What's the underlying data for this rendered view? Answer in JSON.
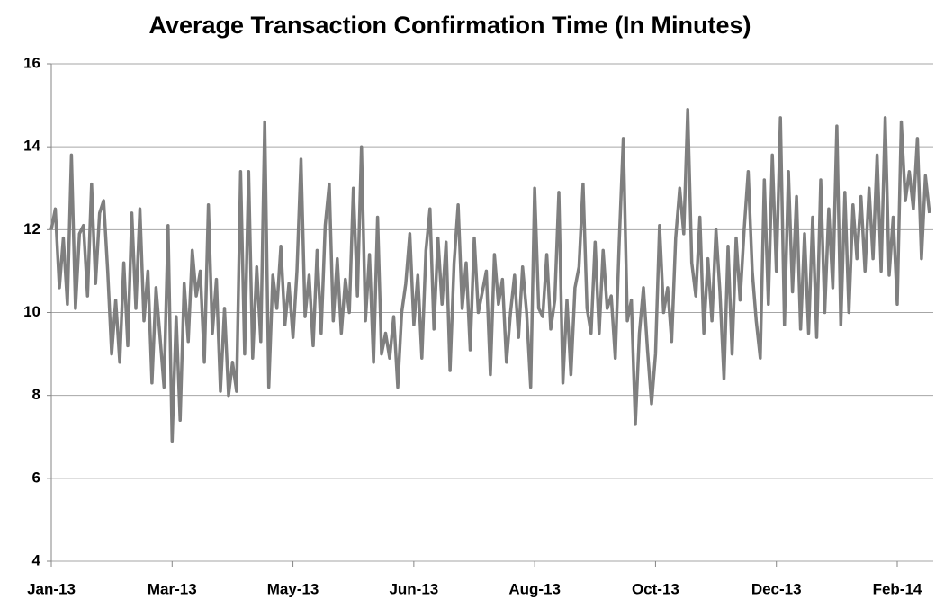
{
  "chart_data": {
    "type": "line",
    "title": "Average Transaction Confirmation Time (In Minutes)",
    "color": "#7f7f7f",
    "ylim": [
      4,
      16
    ],
    "yticks": [
      4,
      6,
      8,
      10,
      12,
      14,
      16
    ],
    "grid": true,
    "categories": [
      "Jan-13",
      null,
      null,
      null,
      null,
      null,
      null,
      null,
      null,
      null,
      null,
      null,
      null,
      null,
      null,
      null,
      null,
      null,
      null,
      null,
      null,
      null,
      null,
      null,
      null,
      null,
      null,
      null,
      null,
      null,
      "Mar-13",
      null,
      null,
      null,
      null,
      null,
      null,
      null,
      null,
      null,
      null,
      null,
      null,
      null,
      null,
      null,
      null,
      null,
      null,
      null,
      null,
      null,
      null,
      null,
      null,
      null,
      null,
      null,
      null,
      null,
      "May-13",
      null,
      null,
      null,
      null,
      null,
      null,
      null,
      null,
      null,
      null,
      null,
      null,
      null,
      null,
      null,
      null,
      null,
      null,
      null,
      null,
      null,
      null,
      null,
      null,
      null,
      null,
      null,
      null,
      null,
      "Jun-13",
      null,
      null,
      null,
      null,
      null,
      null,
      null,
      null,
      null,
      null,
      null,
      null,
      null,
      null,
      null,
      null,
      null,
      null,
      null,
      null,
      null,
      null,
      null,
      null,
      null,
      null,
      null,
      null,
      null,
      "Aug-13",
      null,
      null,
      null,
      null,
      null,
      null,
      null,
      null,
      null,
      null,
      null,
      null,
      null,
      null,
      null,
      null,
      null,
      null,
      null,
      null,
      null,
      null,
      null,
      null,
      null,
      null,
      null,
      null,
      null,
      "Oct-13",
      null,
      null,
      null,
      null,
      null,
      null,
      null,
      null,
      null,
      null,
      null,
      null,
      null,
      null,
      null,
      null,
      null,
      null,
      null,
      null,
      null,
      null,
      null,
      null,
      null,
      null,
      null,
      null,
      null,
      "Dec-13",
      null,
      null,
      null,
      null,
      null,
      null,
      null,
      null,
      null,
      null,
      null,
      null,
      null,
      null,
      null,
      null,
      null,
      null,
      null,
      null,
      null,
      null,
      null,
      null,
      null,
      null,
      null,
      null,
      null,
      "Feb-14",
      null,
      null,
      null,
      null,
      null,
      null,
      null,
      null
    ],
    "values": [
      12.0,
      12.5,
      10.6,
      11.8,
      10.2,
      13.8,
      10.1,
      11.9,
      12.1,
      10.4,
      13.1,
      10.7,
      12.4,
      12.7,
      11.0,
      9.0,
      10.3,
      8.8,
      11.2,
      9.2,
      12.4,
      10.1,
      12.5,
      9.8,
      11.0,
      8.3,
      10.6,
      9.4,
      8.2,
      12.1,
      6.9,
      9.9,
      7.4,
      10.7,
      9.3,
      11.5,
      10.4,
      11.0,
      8.8,
      12.6,
      9.5,
      10.8,
      8.1,
      10.1,
      8.0,
      8.8,
      8.1,
      13.4,
      9.0,
      13.4,
      8.9,
      11.1,
      9.3,
      14.6,
      8.2,
      10.9,
      10.1,
      11.6,
      9.7,
      10.7,
      9.4,
      11.0,
      13.7,
      9.9,
      10.9,
      9.2,
      11.5,
      9.5,
      12.1,
      13.1,
      9.8,
      11.3,
      9.5,
      10.8,
      10.0,
      13.0,
      10.4,
      14.0,
      9.8,
      11.4,
      8.8,
      12.3,
      9.0,
      9.5,
      8.9,
      9.9,
      8.2,
      10.0,
      10.7,
      11.9,
      9.7,
      10.9,
      8.9,
      11.5,
      12.5,
      9.6,
      11.8,
      10.2,
      11.7,
      8.6,
      11.2,
      12.6,
      10.1,
      11.2,
      9.1,
      11.8,
      10.0,
      10.5,
      11.0,
      8.5,
      11.4,
      10.2,
      10.8,
      8.8,
      10.0,
      10.9,
      9.4,
      11.1,
      10.0,
      8.2,
      13.0,
      10.1,
      9.9,
      11.4,
      9.6,
      10.3,
      12.9,
      8.3,
      10.3,
      8.5,
      10.6,
      11.1,
      13.1,
      10.1,
      9.5,
      11.7,
      9.5,
      11.5,
      10.1,
      10.4,
      8.9,
      11.7,
      14.2,
      9.8,
      10.3,
      7.3,
      9.5,
      10.6,
      9.1,
      7.8,
      9.0,
      12.1,
      10.0,
      10.6,
      9.3,
      11.8,
      13.0,
      11.9,
      14.9,
      11.2,
      10.4,
      12.3,
      9.5,
      11.3,
      9.8,
      12.0,
      10.5,
      8.4,
      11.6,
      9.0,
      11.8,
      10.3,
      12.0,
      13.4,
      11.0,
      9.8,
      8.9,
      13.2,
      10.2,
      13.8,
      11.0,
      14.7,
      9.7,
      13.4,
      10.5,
      12.8,
      9.6,
      11.9,
      9.5,
      12.3,
      9.4,
      13.2,
      10.0,
      12.5,
      10.6,
      14.5,
      9.7,
      12.9,
      10.0,
      12.6,
      11.3,
      12.8,
      11.0,
      13.0,
      11.3,
      13.8,
      11.0,
      14.7,
      10.9,
      12.3,
      10.2,
      14.6,
      12.7,
      13.4,
      12.5,
      14.2,
      11.3,
      13.3,
      12.4
    ]
  }
}
